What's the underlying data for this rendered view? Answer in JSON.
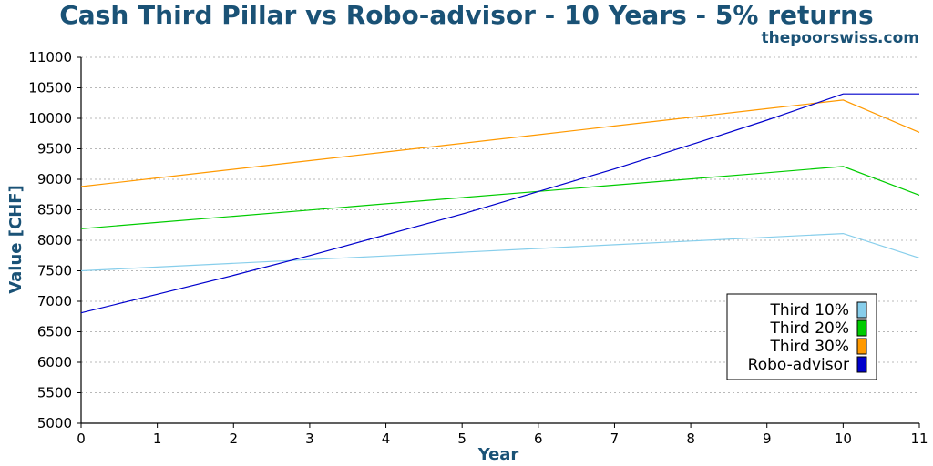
{
  "chart_data": {
    "type": "line",
    "title": "Cash Third Pillar vs Robo-advisor - 10 Years - 5% returns",
    "subtitle": "thepoorswiss.com",
    "xlabel": "Year",
    "ylabel": "Value [CHF]",
    "xlim": [
      0,
      11
    ],
    "ylim": [
      5000,
      11000
    ],
    "x": [
      0,
      1,
      2,
      3,
      4,
      5,
      6,
      7,
      8,
      9,
      10,
      11
    ],
    "xticks": [
      "0",
      "1",
      "2",
      "3",
      "4",
      "5",
      "6",
      "7",
      "8",
      "9",
      "10",
      "11"
    ],
    "yticks": [
      "5000",
      "5500",
      "6000",
      "6500",
      "7000",
      "7500",
      "8000",
      "8500",
      "9000",
      "9500",
      "10000",
      "10500",
      "11000"
    ],
    "grid": "horizontal dotted",
    "legend_position": "bottom-right",
    "series": [
      {
        "name": "Third 10%",
        "color": "#87ceeb",
        "values": [
          7500,
          7561,
          7622,
          7683,
          7744,
          7805,
          7866,
          7927,
          7988,
          8049,
          8110,
          7710
        ]
      },
      {
        "name": "Third 20%",
        "color": "#00cc00",
        "values": [
          8190,
          8292,
          8394,
          8496,
          8598,
          8700,
          8802,
          8904,
          9006,
          9108,
          9210,
          8740
        ]
      },
      {
        "name": "Third 30%",
        "color": "#ff9900",
        "values": [
          8880,
          9022,
          9164,
          9306,
          9448,
          9590,
          9732,
          9874,
          10016,
          10158,
          10300,
          9770
        ]
      },
      {
        "name": "Robo-advisor",
        "color": "#0000cc",
        "values": [
          6810,
          7115,
          7425,
          7750,
          8090,
          8430,
          8800,
          9170,
          9565,
          9970,
          10400,
          10400
        ]
      }
    ]
  }
}
